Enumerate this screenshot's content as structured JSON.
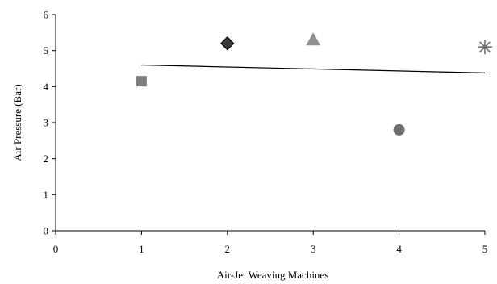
{
  "chart_data": {
    "type": "scatter",
    "title": "",
    "xlabel": "Air-Jet Weaving Machines",
    "ylabel": "Air Pressure (Bar)",
    "xlim": [
      0,
      5
    ],
    "ylim": [
      0,
      6
    ],
    "x_ticks": [
      "0",
      "1",
      "2",
      "3",
      "4",
      "5"
    ],
    "y_ticks": [
      "0",
      "1",
      "2",
      "3",
      "4",
      "5",
      "6"
    ],
    "grid": false,
    "points": [
      {
        "x": 1,
        "y": 4.15,
        "marker": "square",
        "color": "#808080"
      },
      {
        "x": 2,
        "y": 5.2,
        "marker": "diamond",
        "color": "#3a3a3a"
      },
      {
        "x": 3,
        "y": 5.3,
        "marker": "triangle",
        "color": "#8f8f8f"
      },
      {
        "x": 4,
        "y": 2.8,
        "marker": "circle",
        "color": "#6e6e6e"
      },
      {
        "x": 5,
        "y": 5.1,
        "marker": "asterisk",
        "color": "#707070"
      }
    ],
    "trendline": {
      "x": [
        1,
        5
      ],
      "y": [
        4.6,
        4.38
      ],
      "color": "#000000"
    }
  }
}
